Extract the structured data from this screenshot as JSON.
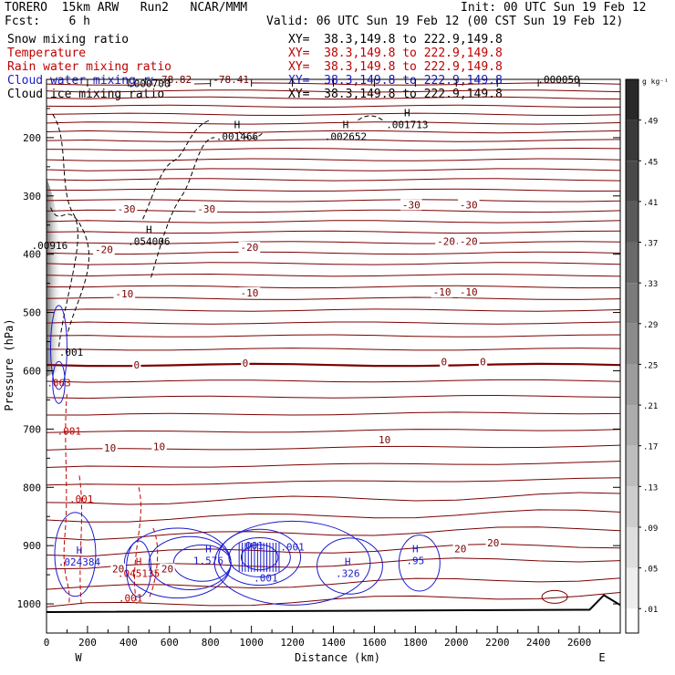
{
  "header": {
    "model": "TORERO  15km ARW   Run2   NCAR/MMM",
    "init": "Init: 00 UTC Sun 19 Feb 12",
    "fcst": "Fcst:    6 h",
    "valid": "Valid: 06 UTC Sun 19 Feb 12 (00 CST Sun 19 Feb 12)"
  },
  "legend": [
    {
      "label": "Snow mixing ratio",
      "xy": "XY=  38.3,149.8 to 222.9,149.8",
      "color": "#000000"
    },
    {
      "label": "Temperature",
      "xy": "XY=  38.3,149.8 to 222.9,149.8",
      "color": "#c00000"
    },
    {
      "label": "Rain water mixing ratio",
      "xy": "XY=  38.3,149.8 to 222.9,149.8",
      "color": "#c00000"
    },
    {
      "label": "Cloud water mixing ratio",
      "xy": "XY=  38.3,149.8 to 222.9,149.8",
      "color": "#1a1acc"
    },
    {
      "label": "Cloud ice mixing ratio",
      "xy": "XY=  38.3,149.8 to 222.9,149.8",
      "color": "#000000"
    }
  ],
  "chart_data": {
    "type": "contour-cross-section",
    "xlabel": "Distance (km)",
    "ylabel": "Pressure (hPa)",
    "x_ticks": [
      0,
      200,
      400,
      600,
      800,
      1000,
      1200,
      1400,
      1600,
      1800,
      2000,
      2200,
      2400,
      2600
    ],
    "y_ticks": [
      200,
      300,
      400,
      500,
      600,
      700,
      800,
      900,
      1000
    ],
    "xlim": [
      0,
      2800
    ],
    "ylim": [
      1050,
      100
    ],
    "left_end": "W",
    "right_end": "E",
    "colorbar": {
      "unit": "g kg⁻¹",
      "ticks": [
        ".49",
        ".45",
        ".41",
        ".37",
        ".33",
        ".29",
        ".25",
        ".21",
        ".17",
        ".13",
        ".09",
        ".05",
        ".01"
      ]
    },
    "isotherms": [
      {
        "label": "-78.82",
        "x": 620,
        "p": 100
      },
      {
        "label": "-78.41",
        "x": 900,
        "p": 100
      },
      {
        "label": "-30",
        "x": 390,
        "p": 322
      },
      {
        "label": "-30",
        "x": 780,
        "p": 322
      },
      {
        "label": "-30",
        "x": 1780,
        "p": 315
      },
      {
        "label": "-30",
        "x": 2060,
        "p": 315
      },
      {
        "label": "-20",
        "x": 280,
        "p": 392
      },
      {
        "label": "-20",
        "x": 990,
        "p": 388
      },
      {
        "label": "-20",
        "x": 1950,
        "p": 378
      },
      {
        "label": "-20",
        "x": 2060,
        "p": 378
      },
      {
        "label": "-10",
        "x": 380,
        "p": 468
      },
      {
        "label": "-10",
        "x": 990,
        "p": 466
      },
      {
        "label": "-10",
        "x": 1930,
        "p": 465
      },
      {
        "label": "-10",
        "x": 2060,
        "p": 465
      },
      {
        "label": "0",
        "x": 440,
        "p": 590
      },
      {
        "label": "0",
        "x": 970,
        "p": 587
      },
      {
        "label": "0",
        "x": 1940,
        "p": 584
      },
      {
        "label": "0",
        "x": 2130,
        "p": 584
      },
      {
        "label": "10",
        "x": 310,
        "p": 732
      },
      {
        "label": "10",
        "x": 550,
        "p": 730
      },
      {
        "label": "10",
        "x": 1650,
        "p": 718
      },
      {
        "label": "20",
        "x": 350,
        "p": 940
      },
      {
        "label": "20",
        "x": 590,
        "p": 940
      },
      {
        "label": "20",
        "x": 2020,
        "p": 905
      },
      {
        "label": "20",
        "x": 2180,
        "p": 895
      }
    ],
    "max_labels": [
      {
        "text": "H",
        "value": ".001466",
        "x": 930,
        "p": 190,
        "color": "#000000"
      },
      {
        "text": "H",
        "value": ".002652",
        "x": 1460,
        "p": 190,
        "color": "#000000"
      },
      {
        "text": "H",
        "value": ".001713",
        "x": 1760,
        "p": 170,
        "color": "#000000"
      },
      {
        "text": "H",
        "value": ".054006",
        "x": 500,
        "p": 370,
        "color": "#000000"
      },
      {
        "text": "",
        "value": ".000700",
        "x": 500,
        "p": 107,
        "color": "#000000"
      },
      {
        "text": "",
        "value": ".000050",
        "x": 2500,
        "p": 100,
        "color": "#000000"
      },
      {
        "text": "",
        "value": ".00916",
        "x": 15,
        "p": 385,
        "color": "#000000"
      },
      {
        "text": "H",
        "value": "1.576",
        "x": 790,
        "p": 918,
        "color": "#1a1acc"
      },
      {
        "text": "H",
        "value": ".326",
        "x": 1470,
        "p": 940,
        "color": "#1a1acc"
      },
      {
        "text": "H",
        "value": ".95",
        "x": 1800,
        "p": 918,
        "color": "#1a1acc"
      },
      {
        "text": "H",
        "value": ".024384",
        "x": 160,
        "p": 920,
        "color": "#1a1acc"
      },
      {
        "text": "H",
        "value": ".045135",
        "x": 450,
        "p": 940,
        "color": "#c00000"
      },
      {
        "text": "",
        "value": ".001",
        "x": 1000,
        "p": 900,
        "color": "#1a1acc"
      },
      {
        "text": "",
        "value": ".001",
        "x": 1200,
        "p": 902,
        "color": "#1a1acc"
      },
      {
        "text": "",
        "value": ".001",
        "x": 1070,
        "p": 955,
        "color": "#1a1acc"
      },
      {
        "text": "",
        "value": ".001",
        "x": 120,
        "p": 568,
        "color": "#000000"
      },
      {
        "text": "",
        "value": ".063",
        "x": 60,
        "p": 620,
        "color": "#c00000"
      },
      {
        "text": "",
        "value": ".001",
        "x": 110,
        "p": 703,
        "color": "#c00000"
      },
      {
        "text": "",
        "value": ".001",
        "x": 170,
        "p": 820,
        "color": "#c00000"
      },
      {
        "text": "",
        "value": ".001",
        "x": 410,
        "p": 990,
        "color": "#c00000"
      }
    ]
  }
}
